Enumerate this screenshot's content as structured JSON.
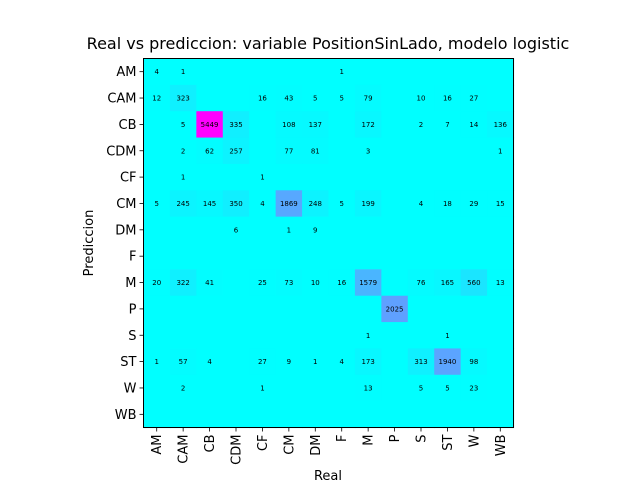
{
  "chart_data": {
    "type": "heatmap",
    "title": "Real vs prediccion: variable PositionSinLado, modelo logistic",
    "xlabel": "Real",
    "ylabel": "Prediccion",
    "x_categories": [
      "AM",
      "CAM",
      "CB",
      "CDM",
      "CF",
      "CM",
      "DM",
      "F",
      "M",
      "P",
      "S",
      "ST",
      "W",
      "WB"
    ],
    "y_categories": [
      "AM",
      "CAM",
      "CB",
      "CDM",
      "CF",
      "CM",
      "DM",
      "F",
      "M",
      "P",
      "S",
      "ST",
      "W",
      "WB"
    ],
    "colormap": "cool",
    "color_low": "#00ffff",
    "color_high": "#ff00ff",
    "vmin": 0,
    "vmax": 5449,
    "zero_cells_labeled": false,
    "values": [
      [
        4,
        1,
        0,
        0,
        0,
        0,
        0,
        1,
        0,
        0,
        0,
        0,
        0,
        0
      ],
      [
        12,
        323,
        0,
        0,
        16,
        43,
        5,
        5,
        79,
        0,
        10,
        16,
        27,
        0
      ],
      [
        0,
        5,
        5449,
        335,
        0,
        108,
        137,
        0,
        172,
        0,
        2,
        7,
        14,
        136
      ],
      [
        0,
        2,
        62,
        257,
        0,
        77,
        81,
        0,
        3,
        0,
        0,
        0,
        0,
        1
      ],
      [
        0,
        1,
        0,
        0,
        1,
        0,
        0,
        0,
        0,
        0,
        0,
        0,
        0,
        0
      ],
      [
        5,
        245,
        145,
        350,
        4,
        1869,
        248,
        5,
        199,
        0,
        4,
        18,
        29,
        15
      ],
      [
        0,
        0,
        0,
        6,
        0,
        1,
        9,
        0,
        0,
        0,
        0,
        0,
        0,
        0
      ],
      [
        0,
        0,
        0,
        0,
        0,
        0,
        0,
        0,
        0,
        0,
        0,
        0,
        0,
        0
      ],
      [
        20,
        322,
        41,
        0,
        25,
        73,
        10,
        16,
        1579,
        0,
        76,
        165,
        560,
        13
      ],
      [
        0,
        0,
        0,
        0,
        0,
        0,
        0,
        0,
        0,
        2025,
        0,
        0,
        0,
        0
      ],
      [
        0,
        0,
        0,
        0,
        0,
        0,
        0,
        0,
        1,
        0,
        0,
        1,
        0,
        0
      ],
      [
        1,
        57,
        4,
        0,
        27,
        9,
        1,
        4,
        173,
        0,
        313,
        1940,
        98,
        0
      ],
      [
        0,
        2,
        0,
        0,
        1,
        0,
        0,
        0,
        13,
        0,
        5,
        5,
        23,
        0
      ],
      [
        0,
        0,
        0,
        0,
        0,
        0,
        0,
        0,
        0,
        0,
        0,
        0,
        0,
        0
      ]
    ]
  }
}
